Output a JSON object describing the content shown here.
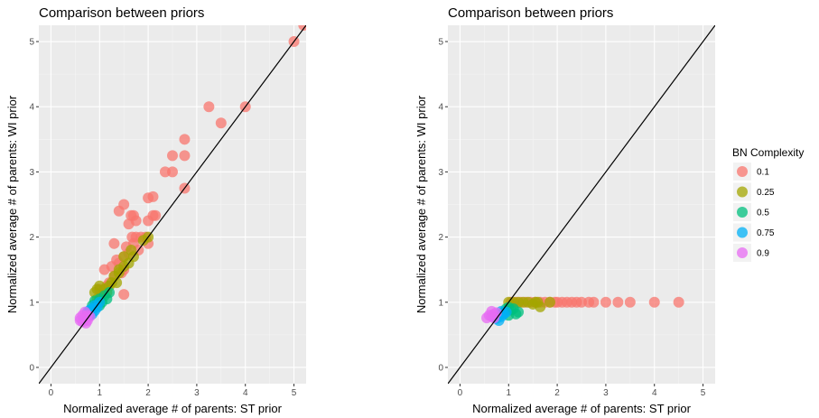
{
  "legend": {
    "title": "BN Complexity",
    "entries": [
      {
        "label": "0.1",
        "color": "#F8766D"
      },
      {
        "label": "0.25",
        "color": "#A3A500"
      },
      {
        "label": "0.5",
        "color": "#00BF7D"
      },
      {
        "label": "0.75",
        "color": "#00B0F6"
      },
      {
        "label": "0.9",
        "color": "#E76BF3"
      }
    ]
  },
  "chart_data": [
    {
      "type": "scatter",
      "title": "Comparison between priors",
      "xlabel": "Normalized average # of parents: ST prior",
      "ylabel": "Normalized average # of parents: WI prior",
      "xlim": [
        -0.25,
        5.25
      ],
      "ylim": [
        -0.25,
        5.25
      ],
      "xticks": [
        0,
        1,
        2,
        3,
        4,
        5
      ],
      "yticks": [
        0,
        1,
        2,
        3,
        4,
        5
      ],
      "reference_line": "y = x",
      "grid": true,
      "series": [
        {
          "name": "0.1",
          "color": "#F8766D",
          "points": [
            [
              5.0,
              5.0
            ],
            [
              5.2,
              5.25
            ],
            [
              4.0,
              4.0
            ],
            [
              3.25,
              4.0
            ],
            [
              3.5,
              3.75
            ],
            [
              2.75,
              3.5
            ],
            [
              2.75,
              3.25
            ],
            [
              2.5,
              3.25
            ],
            [
              2.5,
              3.0
            ],
            [
              2.35,
              3.0
            ],
            [
              2.75,
              2.75
            ],
            [
              2.1,
              2.62
            ],
            [
              2.0,
              2.6
            ],
            [
              1.5,
              2.5
            ],
            [
              1.4,
              2.4
            ],
            [
              2.0,
              2.25
            ],
            [
              2.1,
              2.33
            ],
            [
              2.15,
              2.33
            ],
            [
              1.65,
              2.33
            ],
            [
              1.7,
              2.33
            ],
            [
              1.75,
              2.25
            ],
            [
              1.6,
              2.2
            ],
            [
              1.75,
              2.0
            ],
            [
              1.67,
              2.0
            ],
            [
              1.85,
              2.0
            ],
            [
              1.95,
              2.0
            ],
            [
              2.0,
              1.9
            ],
            [
              1.7,
              1.9
            ],
            [
              1.3,
              1.9
            ],
            [
              1.55,
              1.85
            ],
            [
              1.8,
              1.8
            ],
            [
              1.6,
              1.75
            ],
            [
              1.5,
              1.7
            ],
            [
              1.35,
              1.65
            ],
            [
              1.4,
              1.6
            ],
            [
              1.25,
              1.55
            ],
            [
              1.1,
              1.5
            ],
            [
              1.5,
              1.5
            ],
            [
              1.45,
              1.45
            ],
            [
              1.3,
              1.4
            ],
            [
              1.2,
              1.3
            ],
            [
              1.15,
              1.25
            ],
            [
              1.5,
              1.12
            ],
            [
              1.0,
              1.2
            ]
          ]
        },
        {
          "name": "0.25",
          "color": "#A3A500",
          "points": [
            [
              2.0,
              2.0
            ],
            [
              1.9,
              1.95
            ],
            [
              1.65,
              1.8
            ],
            [
              1.7,
              1.7
            ],
            [
              1.5,
              1.7
            ],
            [
              1.6,
              1.6
            ],
            [
              1.5,
              1.55
            ],
            [
              1.4,
              1.5
            ],
            [
              1.4,
              1.45
            ],
            [
              1.3,
              1.4
            ],
            [
              1.35,
              1.3
            ],
            [
              1.25,
              1.3
            ],
            [
              1.2,
              1.25
            ],
            [
              1.0,
              1.25
            ],
            [
              0.95,
              1.2
            ],
            [
              1.1,
              1.2
            ],
            [
              1.15,
              1.15
            ],
            [
              1.05,
              1.1
            ],
            [
              0.95,
              1.05
            ],
            [
              1.0,
              1.0
            ],
            [
              0.9,
              1.15
            ]
          ]
        },
        {
          "name": "0.5",
          "color": "#00BF7D",
          "points": [
            [
              1.2,
              1.15
            ],
            [
              1.1,
              1.1
            ],
            [
              1.0,
              1.05
            ],
            [
              1.05,
              1.0
            ],
            [
              0.95,
              0.98
            ],
            [
              0.9,
              1.02
            ],
            [
              1.0,
              0.95
            ],
            [
              1.15,
              1.05
            ],
            [
              0.85,
              0.95
            ]
          ]
        },
        {
          "name": "0.75",
          "color": "#00B0F6",
          "points": [
            [
              1.0,
              1.0
            ],
            [
              0.9,
              0.95
            ],
            [
              0.85,
              0.9
            ],
            [
              0.8,
              0.88
            ],
            [
              0.95,
              0.92
            ],
            [
              0.75,
              0.85
            ],
            [
              0.8,
              0.8
            ],
            [
              0.85,
              0.82
            ],
            [
              0.9,
              0.87
            ]
          ]
        },
        {
          "name": "0.9",
          "color": "#E76BF3",
          "points": [
            [
              0.6,
              0.72
            ],
            [
              0.65,
              0.7
            ],
            [
              0.7,
              0.75
            ],
            [
              0.75,
              0.8
            ],
            [
              0.8,
              0.78
            ],
            [
              0.65,
              0.8
            ],
            [
              0.7,
              0.85
            ],
            [
              0.75,
              0.72
            ],
            [
              0.6,
              0.76
            ],
            [
              0.72,
              0.68
            ]
          ]
        }
      ]
    },
    {
      "type": "scatter",
      "title": "Comparison between priors",
      "xlabel": "Normalized average # of parents: ST prior",
      "ylabel": "Normalized average # of parents: WI prior",
      "xlim": [
        -0.25,
        5.25
      ],
      "ylim": [
        -0.25,
        5.25
      ],
      "xticks": [
        0,
        1,
        2,
        3,
        4,
        5
      ],
      "yticks": [
        0,
        1,
        2,
        3,
        4,
        5
      ],
      "reference_line": "y = x",
      "grid": true,
      "series": [
        {
          "name": "0.1",
          "color": "#F8766D",
          "points": [
            [
              4.5,
              1.0
            ],
            [
              4.0,
              1.0
            ],
            [
              3.5,
              1.0
            ],
            [
              3.25,
              1.0
            ],
            [
              3.0,
              1.0
            ],
            [
              2.75,
              1.0
            ],
            [
              2.65,
              1.0
            ],
            [
              2.5,
              1.0
            ],
            [
              2.4,
              1.0
            ],
            [
              2.3,
              1.0
            ],
            [
              2.2,
              1.0
            ],
            [
              2.1,
              1.0
            ],
            [
              2.0,
              1.0
            ],
            [
              1.95,
              1.0
            ],
            [
              1.85,
              1.0
            ],
            [
              1.75,
              1.0
            ],
            [
              1.65,
              1.0
            ],
            [
              1.55,
              1.0
            ],
            [
              1.45,
              1.0
            ],
            [
              1.35,
              1.0
            ],
            [
              1.25,
              1.0
            ],
            [
              1.15,
              1.0
            ],
            [
              1.05,
              1.0
            ]
          ]
        },
        {
          "name": "0.25",
          "color": "#A3A500",
          "points": [
            [
              1.85,
              1.0
            ],
            [
              1.65,
              0.93
            ],
            [
              1.55,
              1.0
            ],
            [
              1.4,
              1.0
            ],
            [
              1.3,
              1.0
            ],
            [
              1.2,
              1.0
            ],
            [
              1.1,
              1.0
            ],
            [
              1.0,
              1.0
            ],
            [
              1.5,
              0.97
            ],
            [
              1.6,
              1.0
            ]
          ]
        },
        {
          "name": "0.5",
          "color": "#00BF7D",
          "points": [
            [
              1.2,
              0.85
            ],
            [
              1.1,
              0.9
            ],
            [
              1.0,
              0.92
            ],
            [
              1.05,
              0.88
            ],
            [
              0.95,
              0.9
            ],
            [
              0.9,
              0.85
            ],
            [
              1.15,
              0.82
            ],
            [
              1.0,
              0.8
            ]
          ]
        },
        {
          "name": "0.75",
          "color": "#00B0F6",
          "points": [
            [
              0.75,
              0.75
            ],
            [
              0.8,
              0.8
            ],
            [
              0.85,
              0.78
            ],
            [
              0.9,
              0.82
            ],
            [
              0.95,
              0.85
            ],
            [
              0.8,
              0.72
            ],
            [
              0.85,
              0.86
            ]
          ]
        },
        {
          "name": "0.9",
          "color": "#E76BF3",
          "points": [
            [
              0.55,
              0.76
            ],
            [
              0.6,
              0.8
            ],
            [
              0.65,
              0.78
            ],
            [
              0.7,
              0.82
            ],
            [
              0.75,
              0.84
            ],
            [
              0.7,
              0.76
            ],
            [
              0.65,
              0.86
            ]
          ]
        }
      ]
    }
  ]
}
